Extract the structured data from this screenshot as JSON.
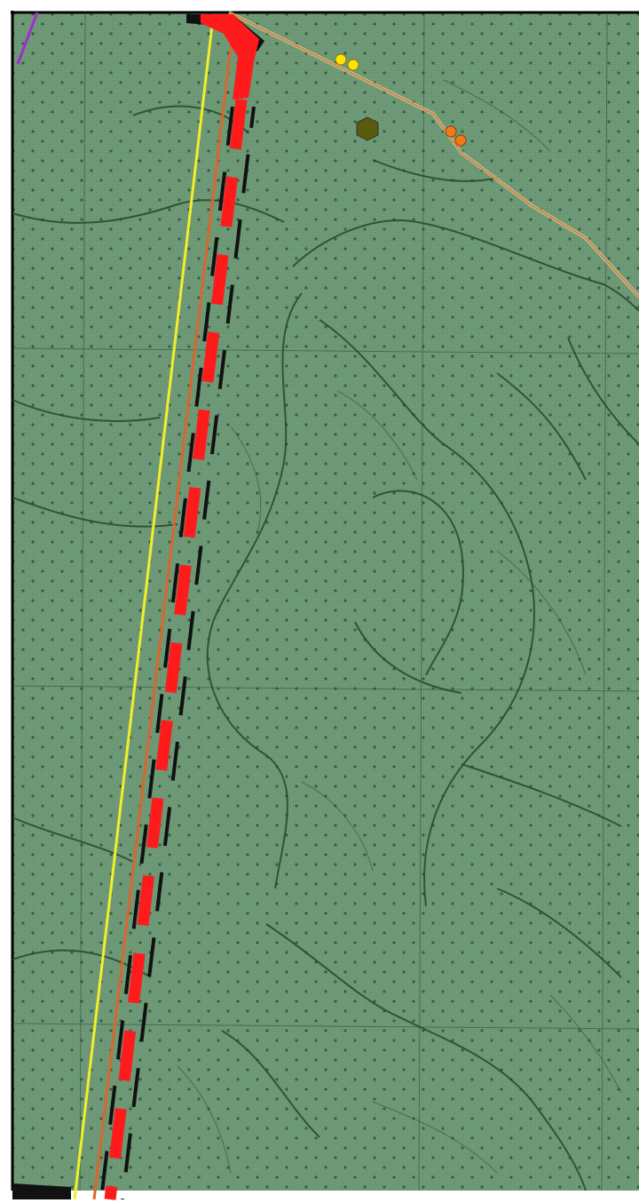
{
  "map": {
    "colors": {
      "frame": "#000000",
      "background_outside": "#ffffff",
      "forest_fill": "#6e9a78",
      "forest_fill_dark": "#5f8a69",
      "grid_line": "#2c4a32",
      "contour_line": "#244a2a",
      "dot": "#2a4f31",
      "route_yellow": "#f2ef2a",
      "route_orange": "#d9662e",
      "route_red": "#ff1b1b",
      "route_black": "#111111",
      "road_tan": "#c98a48",
      "boundary_purple": "#a12bd1",
      "marker_yellow": "#ffe400",
      "marker_orange": "#ef7a18",
      "marker_olive": "#5a5a0c"
    },
    "layers": [
      "forest-area-fill",
      "grid-lines",
      "contour-lines",
      "dotted-vegetation-pattern",
      "yellow-route-line",
      "orange-route-line",
      "red-dashed-route",
      "black-dashed-route",
      "tan-road",
      "purple-boundary",
      "point-markers"
    ],
    "markers": [
      {
        "kind": "yellow-circle",
        "count": 2
      },
      {
        "kind": "orange-circle",
        "count": 2
      },
      {
        "kind": "olive-hexagon",
        "count": 1
      }
    ]
  }
}
